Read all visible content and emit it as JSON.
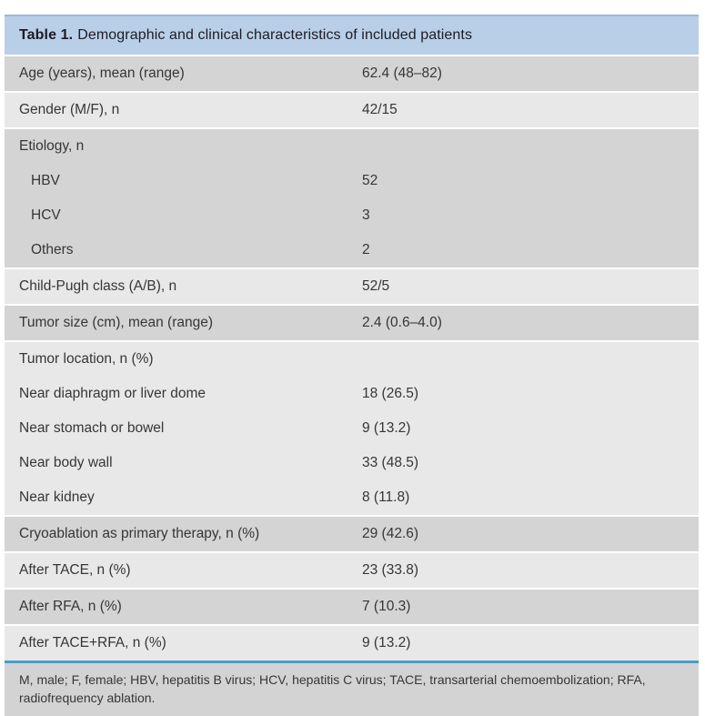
{
  "table": {
    "header": {
      "title_bold": "Table 1.",
      "title_rest": "Demographic and clinical characteristics of included patients"
    },
    "rows": [
      {
        "label": "Age (years), mean (range)",
        "value": "62.4 (48–82)",
        "shade": "dark",
        "indent": false,
        "gap_after": true
      },
      {
        "label": "Gender (M/F), n",
        "value": "42/15",
        "shade": "light",
        "indent": false,
        "gap_after": true
      },
      {
        "label": "Etiology, n",
        "value": "",
        "shade": "dark",
        "indent": false,
        "gap_after": false
      },
      {
        "label": "HBV",
        "value": "52",
        "shade": "dark",
        "indent": true,
        "gap_after": false
      },
      {
        "label": "HCV",
        "value": "3",
        "shade": "dark",
        "indent": true,
        "gap_after": false
      },
      {
        "label": "Others",
        "value": "2",
        "shade": "dark",
        "indent": true,
        "gap_after": true
      },
      {
        "label": "Child-Pugh class (A/B), n",
        "value": "52/5",
        "shade": "light",
        "indent": false,
        "gap_after": true
      },
      {
        "label": "Tumor size (cm), mean (range)",
        "value": "2.4 (0.6–4.0)",
        "shade": "dark",
        "indent": false,
        "gap_after": true
      },
      {
        "label": "Tumor location, n (%)",
        "value": "",
        "shade": "light",
        "indent": false,
        "gap_after": false
      },
      {
        "label": "Near diaphragm or liver dome",
        "value": "18 (26.5)",
        "shade": "light",
        "indent": false,
        "gap_after": false
      },
      {
        "label": "Near stomach or bowel",
        "value": "9 (13.2)",
        "shade": "light",
        "indent": false,
        "gap_after": false
      },
      {
        "label": "Near body wall",
        "value": "33 (48.5)",
        "shade": "light",
        "indent": false,
        "gap_after": false
      },
      {
        "label": "Near kidney",
        "value": "8 (11.8)",
        "shade": "light",
        "indent": false,
        "gap_after": true
      },
      {
        "label": "Cryoablation as primary therapy, n (%)",
        "value": "29 (42.6)",
        "shade": "dark",
        "indent": false,
        "gap_after": true
      },
      {
        "label": "After TACE, n (%)",
        "value": "23 (33.8)",
        "shade": "light",
        "indent": false,
        "gap_after": true
      },
      {
        "label": "After RFA, n (%)",
        "value": "7 (10.3)",
        "shade": "dark",
        "indent": false,
        "gap_after": true
      },
      {
        "label": "After TACE+RFA, n (%)",
        "value": "9 (13.2)",
        "shade": "light",
        "indent": false,
        "gap_after": false
      }
    ],
    "footnote": "M, male; F, female; HBV, hepatitis B virus; HCV, hepatitis C virus; TACE, transarterial chemoembolization; RFA, radiofrequency ablation.",
    "colors": {
      "header_bg": "#b9cfe7",
      "header_border": "#9cb8d6",
      "header_text": "#1b1b26",
      "row_dark": "#d4d4d4",
      "row_light": "#e8e8e8",
      "divider_blue": "#4a9dc6",
      "footer_bg": "#d3d3d3",
      "text": "#363636"
    }
  }
}
